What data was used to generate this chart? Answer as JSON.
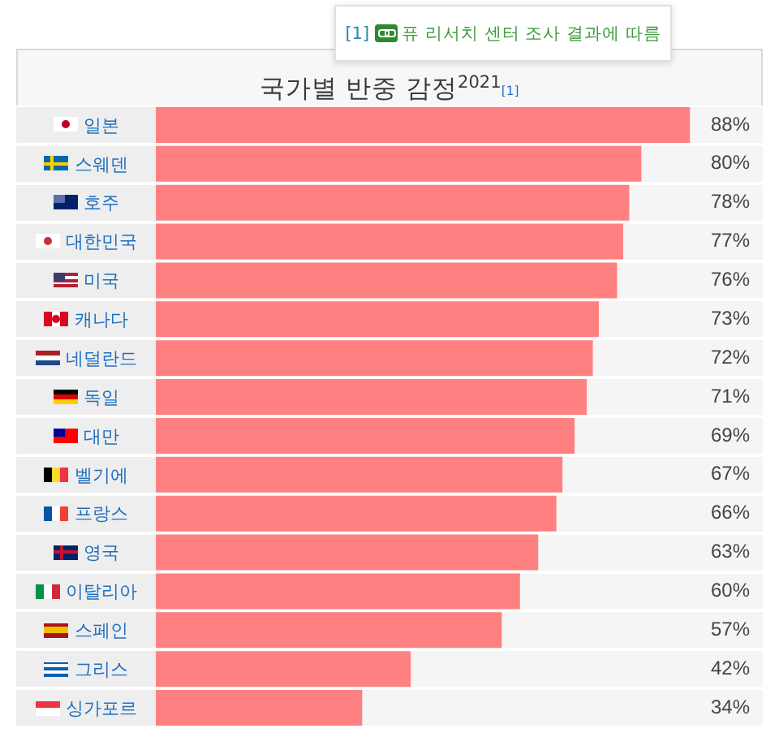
{
  "chart_data": {
    "type": "bar",
    "orientation": "horizontal",
    "title": "국가별 반중 감정$^{2021}$$_{[1]}$",
    "annotations": [
      "[1]",
      "퓨 리서치 센터 조사 결과에 따름"
    ],
    "categories": [
      "일본",
      "스웨덴",
      "호주",
      "대한민국",
      "미국",
      "캐나다",
      "네덜란드",
      "독일",
      "대만",
      "벨기에",
      "프랑스",
      "영국",
      "이탈리아",
      "스페인",
      "그리스",
      "싱가포르"
    ],
    "values": [
      88,
      80,
      78,
      77,
      76,
      73,
      72,
      71,
      69,
      67,
      66,
      63,
      60,
      57,
      42,
      34
    ],
    "value_labels": [
      "88%",
      "80%",
      "78%",
      "77%",
      "76%",
      "73%",
      "72%",
      "71%",
      "69%",
      "67%",
      "66%",
      "63%",
      "60%",
      "57%",
      "42%",
      "34%"
    ],
    "color": "#ff8080",
    "xlim": [
      0,
      100
    ],
    "grid": "y",
    "tick_labels": "y"
  }
}
